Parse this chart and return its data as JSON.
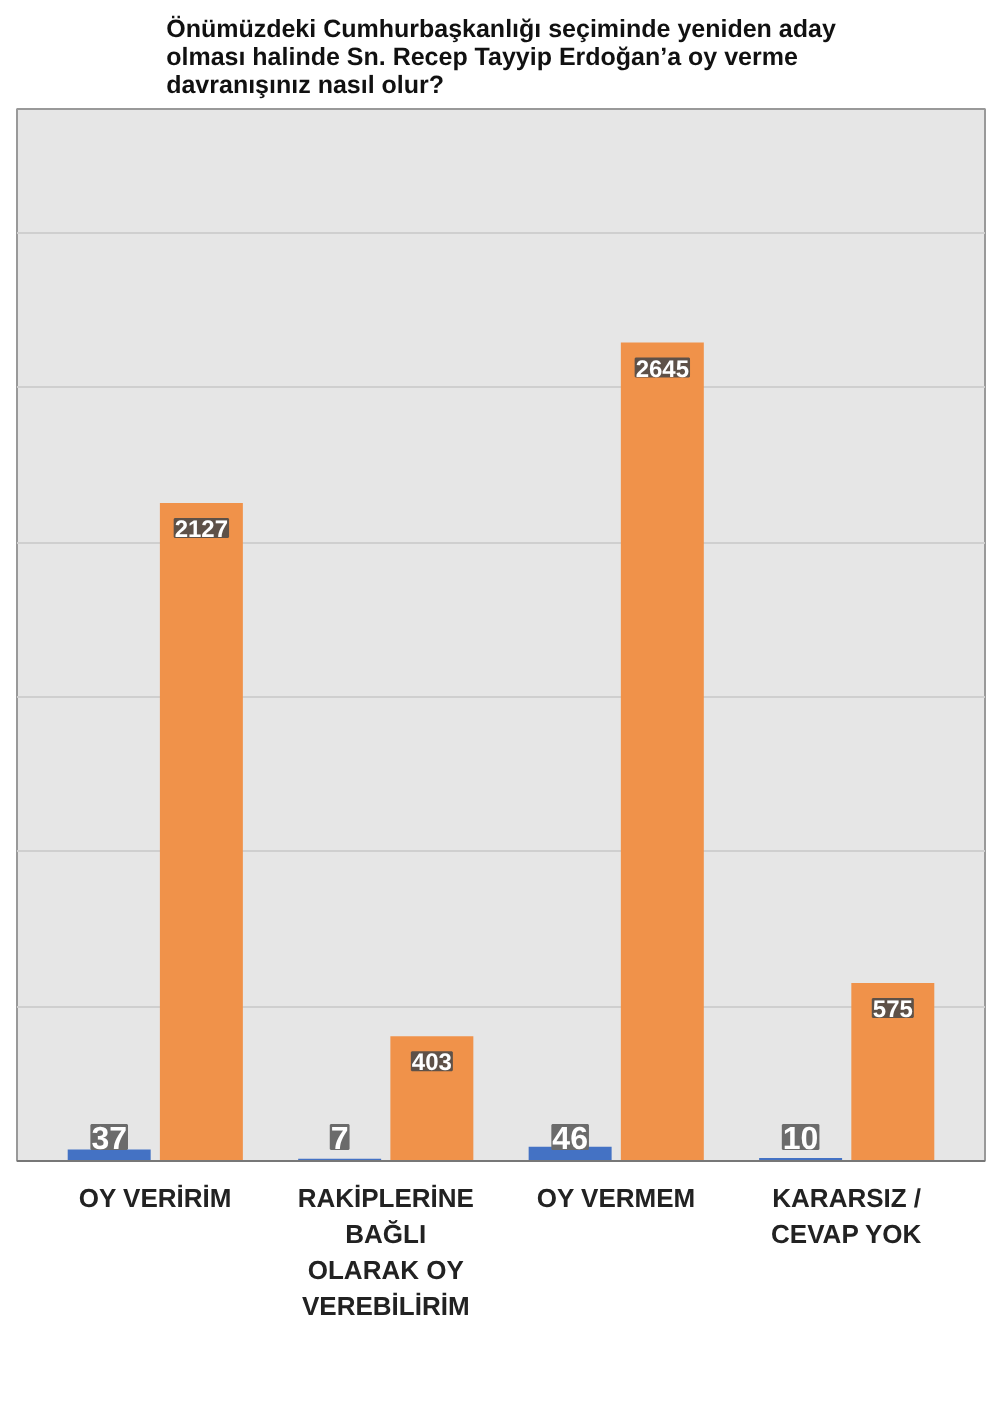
{
  "chart_data": {
    "type": "bar",
    "title": "Önümüzdeki Cumhurbaşkanlığı seçiminde yeniden aday olması halinde Sn. Recep Tayyip Erdoğan’a oy verme davranışınız nasıl olur?",
    "categories": [
      "OY VERİRİM",
      "RAKİPLERİNE BAĞLI OLARAK OY VEREBİLİRİM",
      "OY VERMEM",
      "KARARSIZ / CEVAP YOK"
    ],
    "series": [
      {
        "color": "#4472c4",
        "values": [
          37,
          7,
          46,
          10
        ]
      },
      {
        "color": "#f0924a",
        "values": [
          2127,
          403,
          2645,
          575
        ]
      }
    ],
    "ylim": [
      0,
      3400
    ],
    "yticks": [
      {
        "value": 0,
        "label": null
      },
      {
        "value": 500,
        "label": null
      },
      {
        "value": 1000,
        "label": null
      },
      {
        "value": 1500,
        "label": null
      },
      {
        "value": 2000,
        "label": null
      },
      {
        "value": 2500,
        "label": null
      },
      {
        "value": 3000,
        "label": null
      }
    ],
    "tick_labels": "x",
    "grid": "y",
    "data_labels": true
  }
}
